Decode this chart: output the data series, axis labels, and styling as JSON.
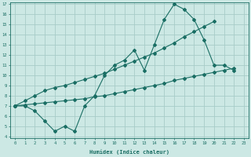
{
  "xlabel": "Humidex (Indice chaleur)",
  "bg_color": "#cce8e4",
  "grid_color": "#a8ccc8",
  "line_color": "#1a6e64",
  "x_values": [
    0,
    1,
    2,
    3,
    4,
    5,
    6,
    7,
    8,
    9,
    10,
    11,
    12,
    13,
    14,
    15,
    16,
    17,
    18,
    19,
    20,
    21,
    22,
    23
  ],
  "line_main": [
    7.0,
    7.0,
    6.5,
    5.5,
    4.5,
    5.0,
    4.5,
    7.0,
    8.0,
    10.0,
    11.0,
    11.5,
    12.5,
    10.5,
    13.0,
    15.5,
    17.0,
    16.5,
    15.5,
    13.5,
    11.0,
    11.0,
    10.5,
    null
  ],
  "line_upper": [
    7.0,
    7.5,
    8.0,
    8.5,
    8.8,
    9.0,
    9.3,
    9.6,
    9.9,
    10.2,
    10.6,
    11.0,
    11.4,
    11.8,
    12.2,
    12.7,
    13.2,
    13.8,
    14.3,
    14.8,
    15.3,
    null,
    null,
    null
  ],
  "line_lower": [
    7.0,
    7.1,
    7.2,
    7.3,
    7.4,
    7.5,
    7.6,
    7.7,
    7.9,
    8.0,
    8.2,
    8.4,
    8.6,
    8.8,
    9.0,
    9.2,
    9.5,
    9.7,
    9.9,
    10.1,
    10.3,
    10.5,
    10.7,
    null
  ],
  "ylim": [
    4,
    17
  ],
  "xlim": [
    -0.5,
    23.5
  ],
  "yticks": [
    4,
    5,
    6,
    7,
    8,
    9,
    10,
    11,
    12,
    13,
    14,
    15,
    16,
    17
  ],
  "xticks": [
    0,
    1,
    2,
    3,
    4,
    5,
    6,
    7,
    8,
    9,
    10,
    11,
    12,
    13,
    14,
    15,
    16,
    17,
    18,
    19,
    20,
    21,
    22,
    23
  ],
  "xtick_labels": [
    "0",
    "1",
    "2",
    "3",
    "4",
    "5",
    "6",
    "7",
    "8",
    "9",
    "10",
    "11",
    "12",
    "13",
    "14",
    "15",
    "16",
    "17",
    "18",
    "19",
    "20",
    "21",
    "22",
    "23"
  ]
}
